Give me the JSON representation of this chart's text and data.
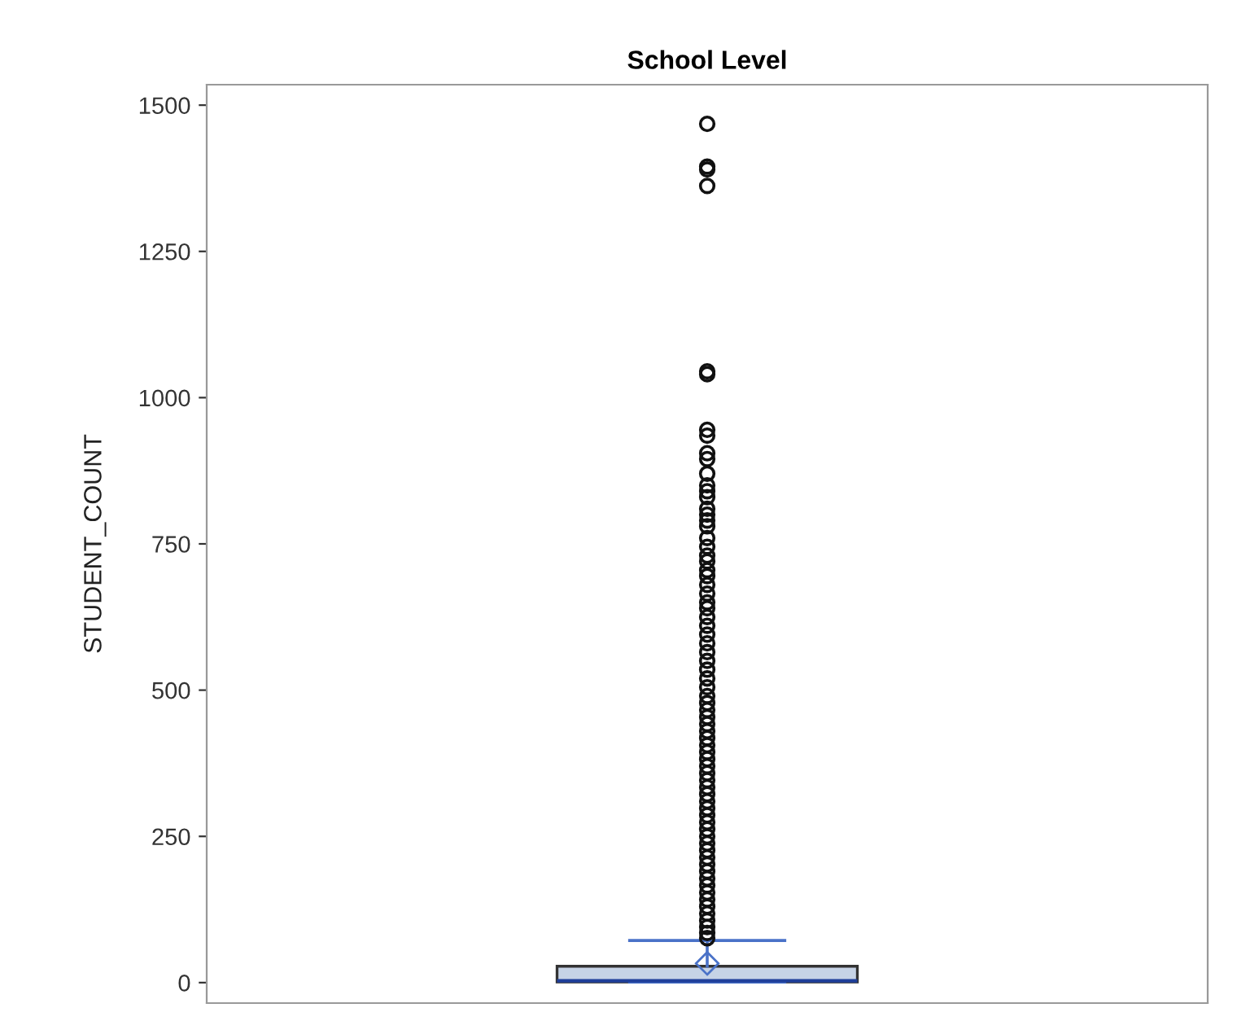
{
  "chart_data": {
    "type": "box",
    "title": "School Level",
    "ylabel": "STUDENT_COUNT",
    "categories": [
      null
    ],
    "ylim": [
      -35,
      1535
    ],
    "yticks": [
      0,
      250,
      500,
      750,
      1000,
      1250,
      1500
    ],
    "tick_labels": "y",
    "grid": false,
    "legend": false,
    "series": [
      {
        "color": "#c6d3e6",
        "boxes": [
          {
            "low": 1,
            "q1": 1,
            "median": 3,
            "q3": 28,
            "high": 72,
            "mean": 33,
            "outliers": [
              1468,
              1395,
              1390,
              1362,
              1045,
              1040,
              945,
              935,
              905,
              895,
              870,
              850,
              840,
              830,
              810,
              800,
              790,
              780,
              760,
              745,
              730,
              720,
              705,
              695,
              680,
              665,
              650,
              640,
              625,
              610,
              595,
              580,
              565,
              550,
              535,
              520,
              505,
              490,
              478,
              466,
              454,
              442,
              430,
              418,
              406,
              394,
              382,
              370,
              358,
              346,
              334,
              322,
              310,
              298,
              286,
              274,
              262,
              250,
              238,
              226,
              214,
              202,
              190,
              178,
              166,
              154,
              142,
              130,
              118,
              106,
              95,
              85,
              76
            ]
          }
        ]
      }
    ]
  }
}
